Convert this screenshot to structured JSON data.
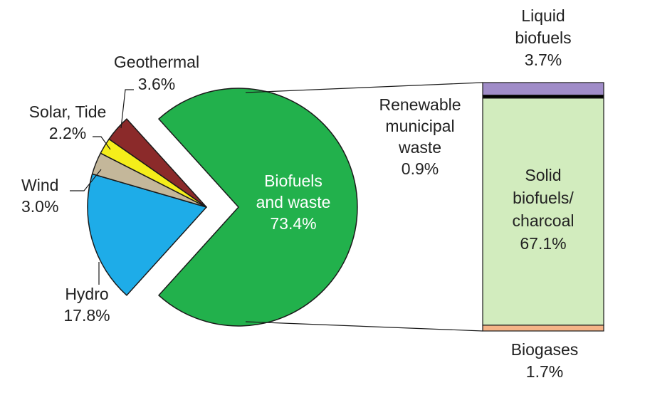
{
  "chart_data": {
    "type": "pie",
    "title": "",
    "slices": [
      {
        "label_lines": [
          "Biofuels",
          "and waste"
        ],
        "value_text": "73.4%",
        "value": 73.4,
        "color": "#22b14c",
        "exploded": true
      },
      {
        "label_lines": [
          "Hydro"
        ],
        "value_text": "17.8%",
        "value": 17.8,
        "color": "#1eace8"
      },
      {
        "label_lines": [
          "Wind"
        ],
        "value_text": "3.0%",
        "value": 3.0,
        "color": "#c4b79a"
      },
      {
        "label_lines": [
          "Solar, Tide"
        ],
        "value_text": "2.2%",
        "value": 2.2,
        "color": "#f5ee1a"
      },
      {
        "label_lines": [
          "Geothermal"
        ],
        "value_text": "3.6%",
        "value": 3.6,
        "color": "#8b2a2a"
      }
    ],
    "breakdown": {
      "parent": "Biofuels and waste",
      "type": "stacked-bar",
      "segments": [
        {
          "label_lines": [
            "Liquid",
            "biofuels"
          ],
          "value_text": "3.7%",
          "value": 3.7,
          "color": "#a08cc8"
        },
        {
          "label_lines": [
            "Renewable",
            "municipal",
            "waste"
          ],
          "value_text": "0.9%",
          "value": 0.9,
          "color": "#000000"
        },
        {
          "label_lines": [
            "Solid",
            "biofuels/",
            "charcoal"
          ],
          "value_text": "67.1%",
          "value": 67.1,
          "color": "#d2ecbe"
        },
        {
          "label_lines": [
            "Biogases"
          ],
          "value_text": "1.7%",
          "value": 1.7,
          "color": "#f5b487"
        }
      ]
    }
  }
}
